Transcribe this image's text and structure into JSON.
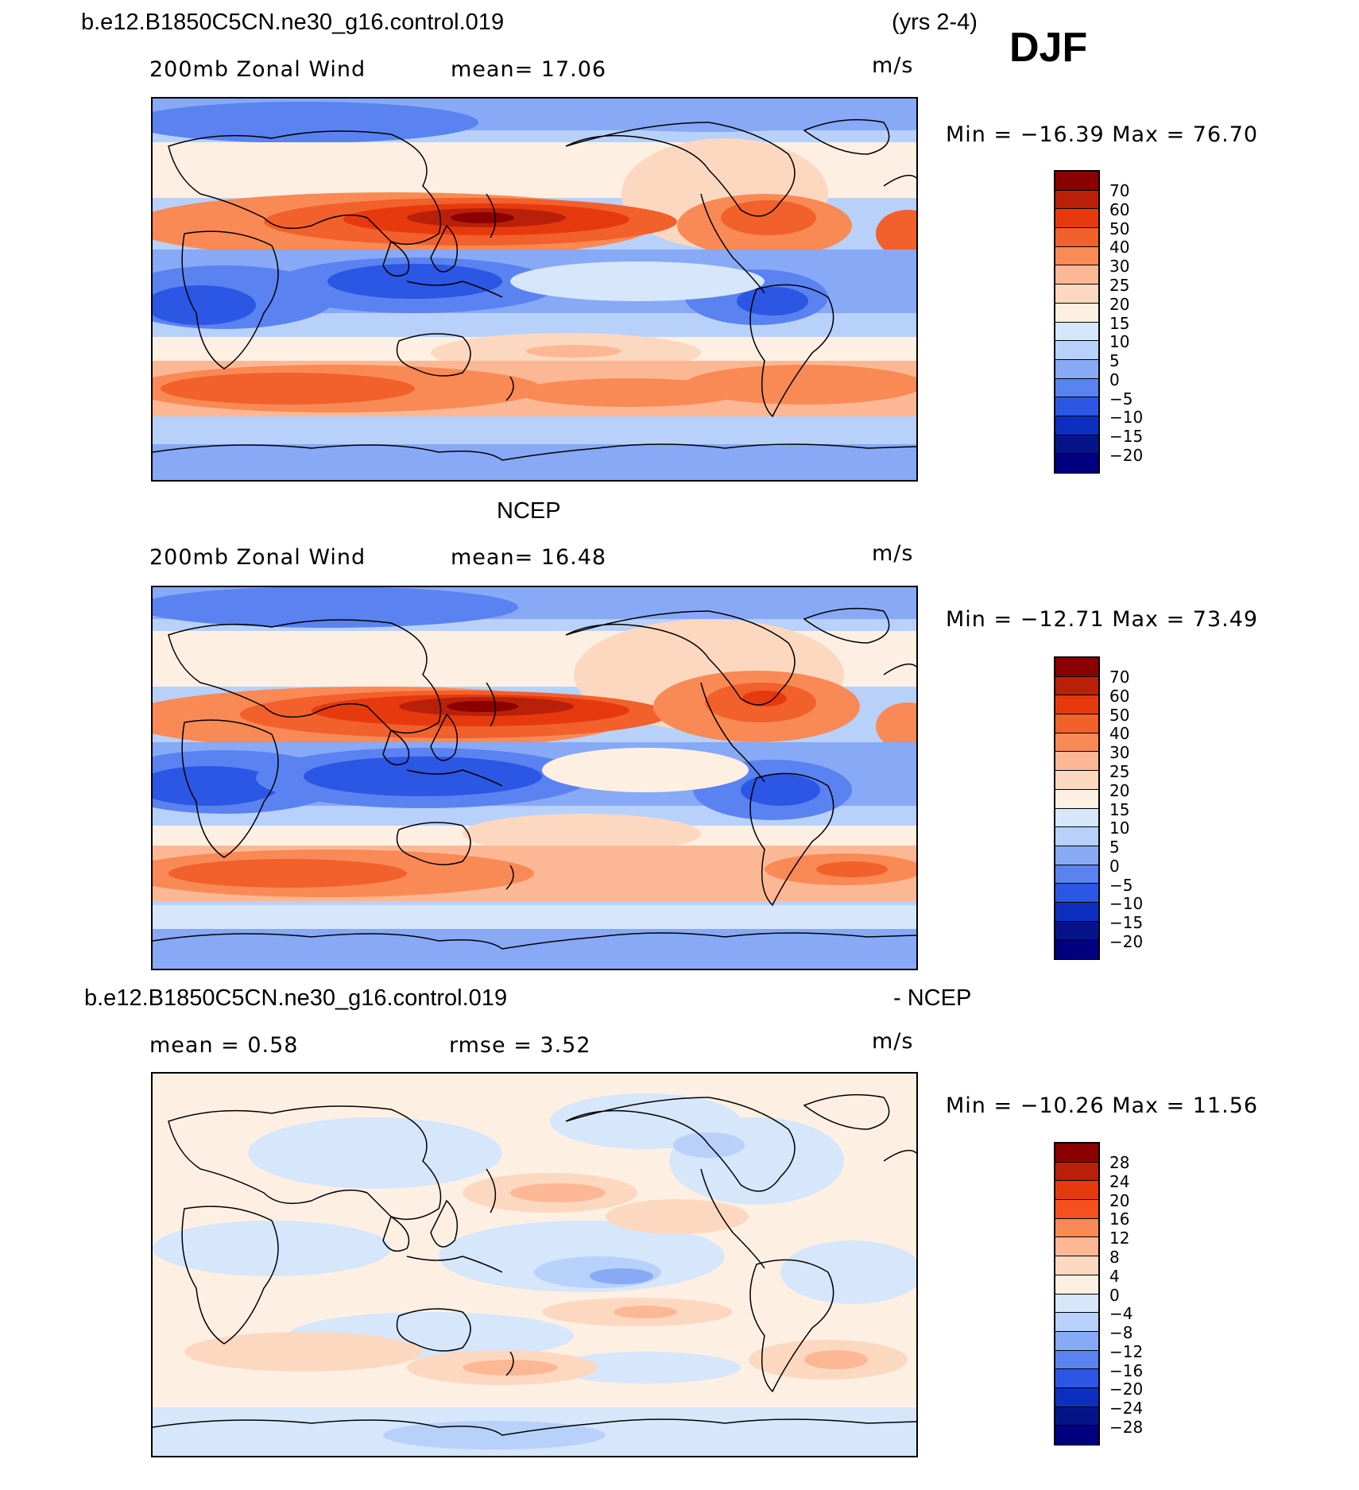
{
  "season": "DJF",
  "years": "(yrs 2-4)",
  "panels": [
    {
      "id": "model",
      "case": "b.e12.B1850C5CN.ne30_g16.control.019",
      "title": "",
      "variable": "200mb  Zonal Wind",
      "stat1": "mean=   17.06",
      "stat2": "",
      "units": "m/s",
      "minmax": "Min  =  −16.39  Max  =    76.70",
      "levels": [
        "70",
        "60",
        "50",
        "40",
        "30",
        "25",
        "20",
        "15",
        "10",
        "5",
        "0",
        "−5",
        "−10",
        "−15",
        "−20"
      ],
      "colors": [
        "#8b0000",
        "#b8200a",
        "#e63a0e",
        "#f2602c",
        "#f98a55",
        "#fcb895",
        "#fcd8c0",
        "#fdf0e3",
        "#d6e6fb",
        "#b8d1fa",
        "#87a9f6",
        "#5a82f1",
        "#2c56e4",
        "#0d2fc0",
        "#06148a"
      ]
    },
    {
      "id": "obs",
      "title": "NCEP",
      "variable": "200mb  Zonal Wind",
      "stat1": "mean=   16.48",
      "stat2": "",
      "units": "m/s",
      "minmax": "Min  =  −12.71  Max  =    73.49",
      "levels": [
        "70",
        "60",
        "50",
        "40",
        "30",
        "25",
        "20",
        "15",
        "10",
        "5",
        "0",
        "−5",
        "−10",
        "−15",
        "−20"
      ],
      "colors": [
        "#8b0000",
        "#b8200a",
        "#e63a0e",
        "#f2602c",
        "#f98a55",
        "#fcb895",
        "#fcd8c0",
        "#fdf0e3",
        "#d6e6fb",
        "#b8d1fa",
        "#87a9f6",
        "#5a82f1",
        "#2c56e4",
        "#0d2fc0",
        "#06148a"
      ]
    },
    {
      "id": "diff",
      "case": "b.e12.B1850C5CN.ne30_g16.control.019",
      "title": "- NCEP",
      "variable": "",
      "stat1": "mean =     0.58",
      "stat2": "rmse =     3.52",
      "units": "m/s",
      "minmax": "Min  =  −10.26  Max  =    11.56",
      "levels": [
        "28",
        "24",
        "20",
        "16",
        "12",
        "8",
        "4",
        "0",
        "−4",
        "−8",
        "−12",
        "−16",
        "−20",
        "−24",
        "−28"
      ],
      "colors": [
        "#8b0000",
        "#b8200a",
        "#e63a0e",
        "#f5501e",
        "#f98a55",
        "#fcb895",
        "#fcd8c0",
        "#fdf0e3",
        "#d6e6fb",
        "#b8d1fa",
        "#87a9f6",
        "#5a82f1",
        "#2c56e4",
        "#0d2fc0",
        "#06148a"
      ]
    }
  ]
}
